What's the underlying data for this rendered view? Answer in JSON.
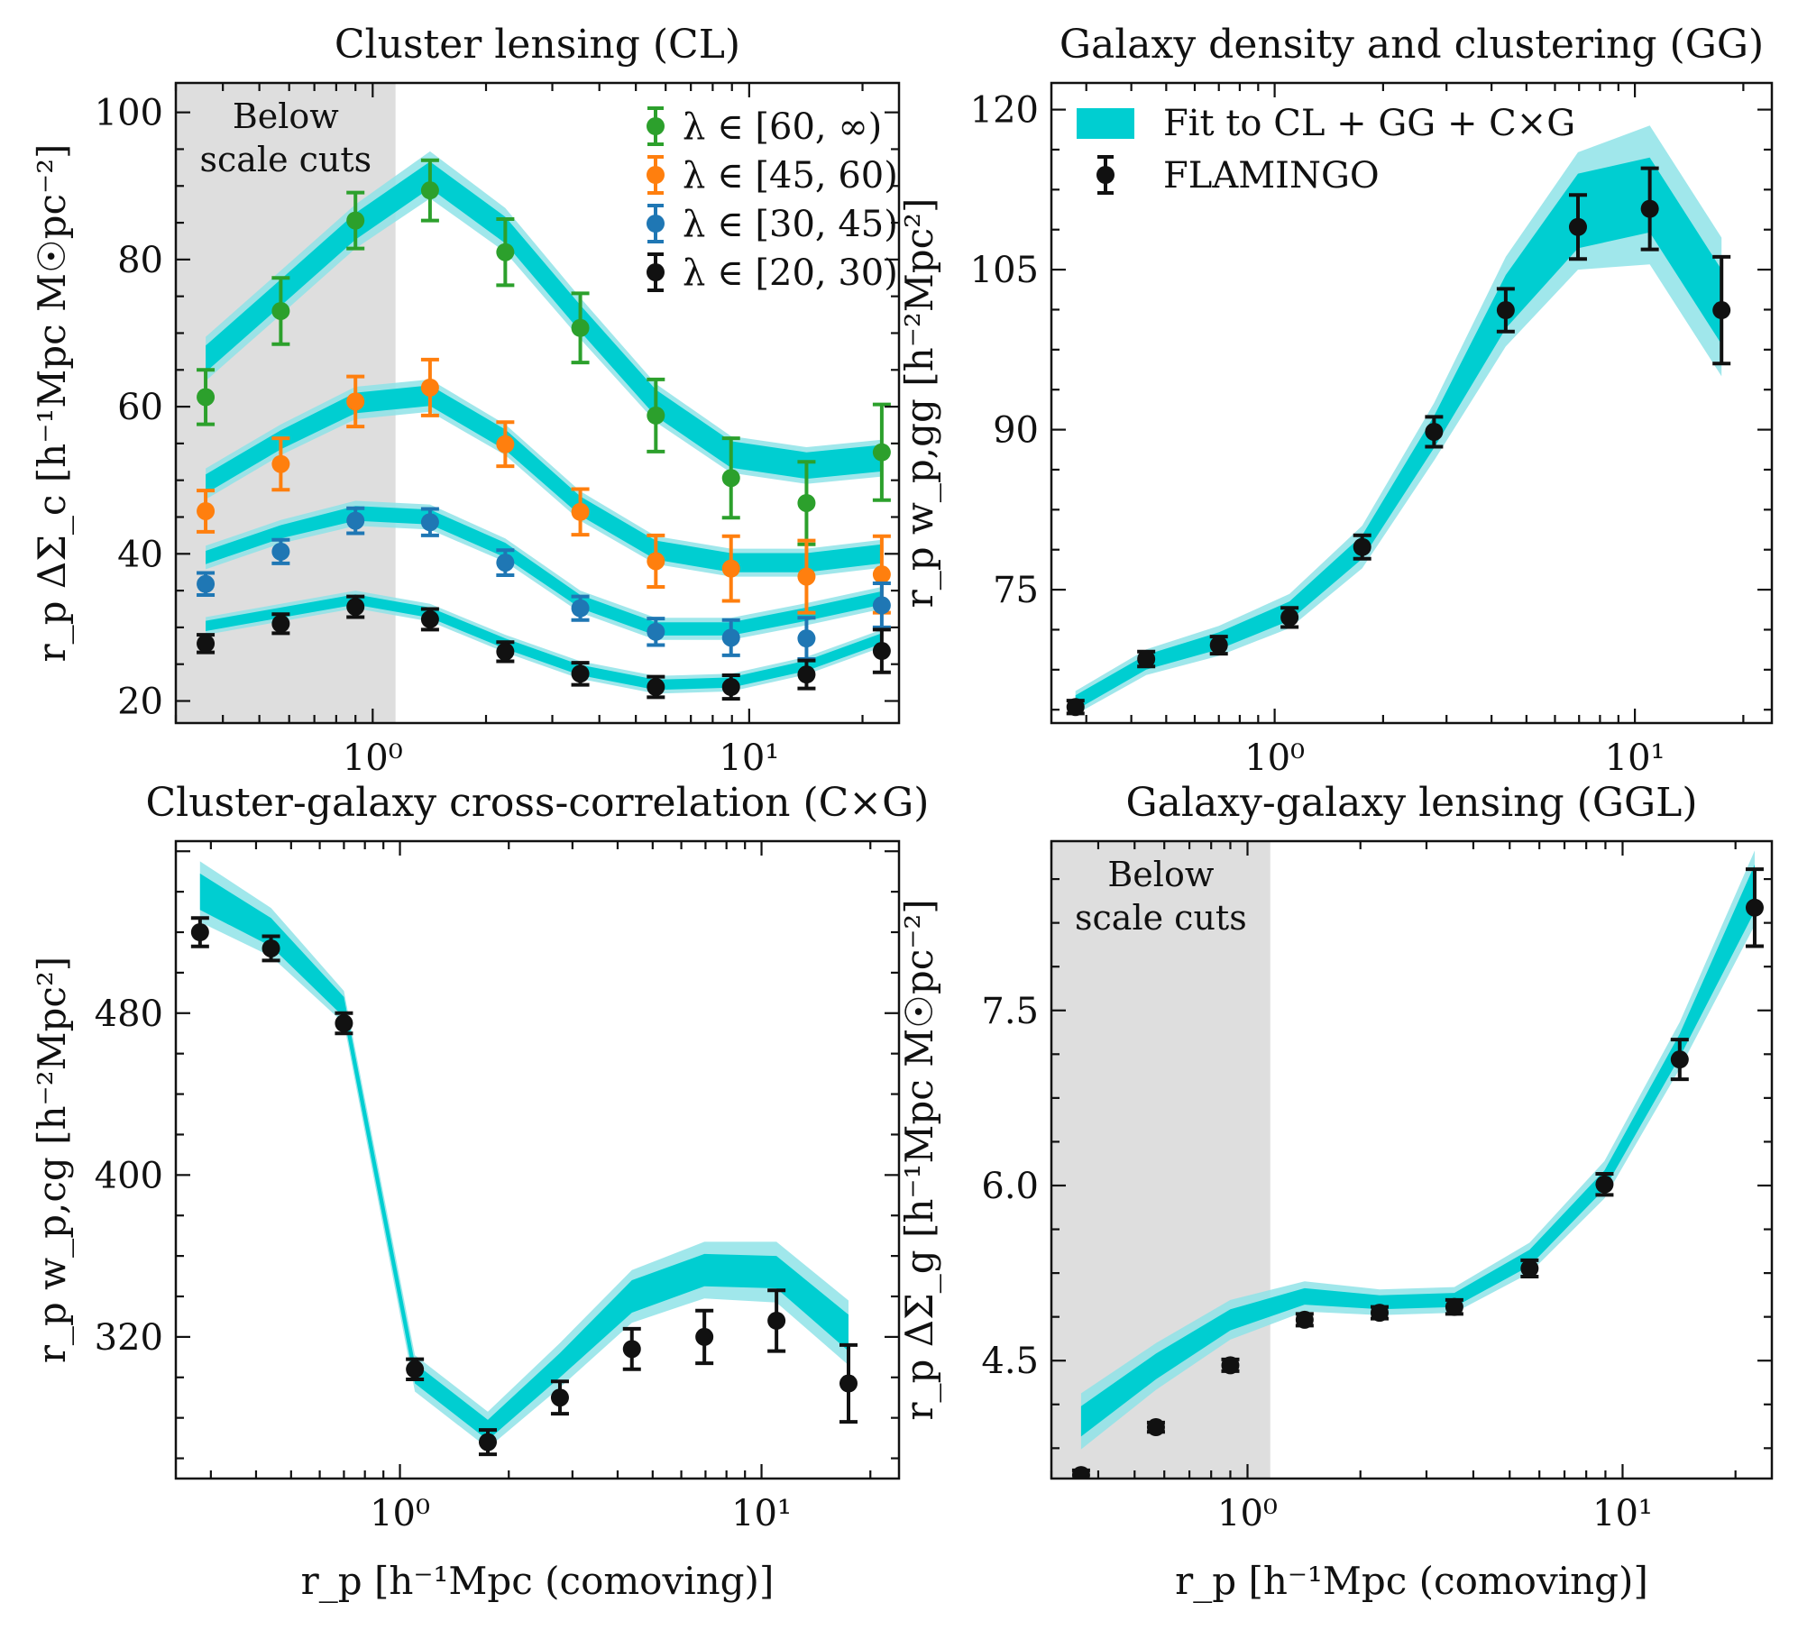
{
  "figure": {
    "xlabel_common": "r_p [h⁻¹Mpc (comoving)]"
  },
  "colors": {
    "band_inner": "#00CED1",
    "band_outer": "#8FE3E8",
    "shade": "#DEDEDE",
    "green": "#2CA02C",
    "orange": "#FF7F0E",
    "blue": "#1F77B4",
    "black": "#111111"
  },
  "chart_data": [
    {
      "id": "cl",
      "type": "line",
      "title": "Cluster lensing (CL)",
      "ylabel": "r_p ΔΣ_c [h⁻¹Mpc M☉pc⁻²]",
      "xlabel": "",
      "xscale": "log",
      "xlim": [
        0.3,
        25
      ],
      "ylim": [
        17,
        104
      ],
      "xticks": [
        {
          "v": 1,
          "label": "10⁰"
        },
        {
          "v": 10,
          "label": "10¹"
        }
      ],
      "yticks": [
        20,
        40,
        60,
        80,
        100
      ],
      "shade_region": {
        "x": [
          0.3,
          1.15
        ],
        "label": [
          "Below",
          "scale cuts"
        ]
      },
      "legend": {
        "position": "top-right",
        "entries": [
          {
            "label": "λ ∈ [60, ∞)",
            "color": "#2CA02C"
          },
          {
            "label": "λ ∈ [45, 60)",
            "color": "#FF7F0E"
          },
          {
            "label": "λ ∈ [30, 45)",
            "color": "#1F77B4"
          },
          {
            "label": "λ ∈ [20, 30)",
            "color": "#111111"
          }
        ]
      },
      "x": [
        0.36,
        0.57,
        0.9,
        1.42,
        2.25,
        3.56,
        5.65,
        8.95,
        14.2,
        22.5
      ],
      "series": [
        {
          "name": "λ ∈ [60, ∞)",
          "color": "#2CA02C",
          "points": [
            61.3,
            73.0,
            85.3,
            89.4,
            81.0,
            70.7,
            58.8,
            50.3,
            46.9,
            53.8
          ],
          "errors": [
            3.7,
            4.5,
            3.8,
            4.1,
            4.5,
            4.7,
            4.9,
            5.4,
            5.6,
            6.5
          ],
          "model": [
            66.5,
            75.5,
            84.5,
            91.5,
            84.0,
            72.0,
            60.5,
            53.5,
            52.0,
            53.0
          ],
          "inner": [
            1.8,
            1.8,
            1.8,
            1.8,
            1.8,
            1.8,
            1.8,
            1.8,
            1.8,
            1.8
          ],
          "outer": [
            3.0,
            3.0,
            3.0,
            3.2,
            3.0,
            2.8,
            2.6,
            2.5,
            2.5,
            2.5
          ]
        },
        {
          "name": "λ ∈ [45, 60)",
          "color": "#FF7F0E",
          "points": [
            45.8,
            52.2,
            60.7,
            62.6,
            54.9,
            45.7,
            39.0,
            38.0,
            36.9,
            37.2
          ],
          "errors": [
            2.8,
            3.5,
            3.4,
            3.8,
            3.0,
            3.1,
            3.5,
            4.4,
            4.9,
            5.2
          ],
          "model": [
            49.5,
            55.5,
            60.5,
            61.5,
            55.5,
            46.5,
            40.5,
            38.8,
            38.8,
            40.0
          ],
          "inner": [
            1.3,
            1.3,
            1.4,
            1.4,
            1.4,
            1.3,
            1.3,
            1.3,
            1.3,
            1.3
          ],
          "outer": [
            2.1,
            2.1,
            2.2,
            2.2,
            2.1,
            2.0,
            1.9,
            1.9,
            1.9,
            1.9
          ]
        },
        {
          "name": "λ ∈ [30, 45)",
          "color": "#1F77B4",
          "points": [
            35.9,
            40.3,
            44.5,
            44.3,
            38.8,
            32.6,
            29.4,
            28.6,
            28.5,
            33.0
          ],
          "errors": [
            1.5,
            1.6,
            1.7,
            1.8,
            1.7,
            1.6,
            1.8,
            2.4,
            2.8,
            3.0
          ],
          "model": [
            39.5,
            43.0,
            45.5,
            45.0,
            40.5,
            33.5,
            29.8,
            29.8,
            31.8,
            34.0
          ],
          "inner": [
            0.9,
            0.9,
            1.0,
            1.0,
            1.0,
            0.9,
            0.9,
            0.9,
            0.9,
            0.9
          ],
          "outer": [
            1.6,
            1.6,
            1.7,
            1.7,
            1.6,
            1.5,
            1.5,
            1.5,
            1.5,
            1.5
          ]
        },
        {
          "name": "λ ∈ [20, 30)",
          "color": "#111111",
          "points": [
            27.8,
            30.5,
            32.8,
            31.1,
            26.7,
            23.7,
            21.9,
            21.9,
            23.6,
            26.8
          ],
          "errors": [
            1.2,
            1.3,
            1.4,
            1.4,
            1.3,
            1.5,
            1.4,
            1.6,
            1.9,
            2.9
          ],
          "model": [
            30.2,
            32.0,
            33.8,
            32.0,
            27.8,
            24.2,
            22.2,
            22.5,
            24.8,
            28.5
          ],
          "inner": [
            0.7,
            0.7,
            0.7,
            0.7,
            0.7,
            0.7,
            0.7,
            0.7,
            0.7,
            0.7
          ],
          "outer": [
            1.2,
            1.2,
            1.2,
            1.2,
            1.2,
            1.2,
            1.2,
            1.2,
            1.2,
            1.2
          ]
        }
      ]
    },
    {
      "id": "gg",
      "type": "line",
      "title": "Galaxy density and clustering (GG)",
      "ylabel": "r_p w_p,gg [h⁻²Mpc²]",
      "xlabel": "",
      "xscale": "log",
      "xlim": [
        0.24,
        24
      ],
      "ylim": [
        62.5,
        122.5
      ],
      "xticks": [
        {
          "v": 1,
          "label": "10⁰"
        },
        {
          "v": 10,
          "label": "10¹"
        }
      ],
      "yticks": [
        75,
        90,
        105,
        120
      ],
      "legend": {
        "position": "top-left",
        "entries": [
          {
            "label": "Fit to CL + GG + C×G",
            "kind": "band"
          },
          {
            "label": "FLAMINGO",
            "kind": "errorbar"
          }
        ]
      },
      "x": [
        0.28,
        0.44,
        0.7,
        1.1,
        1.75,
        2.77,
        4.38,
        6.95,
        11.0,
        17.4
      ],
      "series": [
        {
          "name": "FLAMINGO",
          "color": "#111111",
          "points": [
            64.0,
            68.5,
            69.8,
            72.4,
            79.0,
            89.8,
            101.2,
            109.0,
            110.7,
            101.2
          ],
          "errors": [
            0.6,
            0.7,
            0.8,
            0.9,
            1.1,
            1.4,
            2.0,
            3.0,
            3.8,
            5.0
          ],
          "model": [
            64.4,
            68.2,
            70.2,
            73.0,
            79.0,
            89.8,
            102.0,
            110.5,
            112.0,
            101.5
          ],
          "inner": [
            0.7,
            0.7,
            0.8,
            0.9,
            1.1,
            1.5,
            2.5,
            3.5,
            3.5,
            3.5
          ],
          "outer": [
            1.1,
            1.2,
            1.4,
            1.6,
            2.0,
            2.7,
            4.2,
            5.5,
            6.5,
            6.5
          ]
        }
      ]
    },
    {
      "id": "cg",
      "type": "line",
      "title": "Cluster-galaxy cross-correlation (C×G)",
      "ylabel": "r_p w_p,cg [h⁻²Mpc²]",
      "xlabel": "r_p [h⁻¹Mpc (comoving)]",
      "xscale": "log",
      "xlim": [
        0.24,
        24
      ],
      "ylim": [
        250,
        565
      ],
      "xticks": [
        {
          "v": 1,
          "label": "10⁰"
        },
        {
          "v": 10,
          "label": "10¹"
        }
      ],
      "yticks": [
        320,
        400,
        480
      ],
      "x": [
        0.28,
        0.44,
        0.7,
        1.1,
        1.75,
        2.77,
        4.38,
        6.95,
        11.0,
        17.4
      ],
      "series": [
        {
          "name": "FLAMINGO",
          "color": "#111111",
          "points": [
            520,
            512,
            475,
            304,
            268,
            290,
            314,
            320,
            328,
            297
          ],
          "errors": [
            7,
            6,
            5,
            5,
            6,
            8,
            10,
            13,
            15,
            19
          ],
          "model": [
            540,
            520,
            483,
            302,
            274,
            306,
            340,
            353,
            352,
            322
          ],
          "inner": [
            9,
            7,
            5,
            5,
            5,
            6,
            8,
            8,
            8,
            9
          ],
          "outer": [
            15,
            12,
            8,
            9,
            9,
            11,
            13,
            14,
            15,
            16
          ]
        }
      ]
    },
    {
      "id": "ggl",
      "type": "line",
      "title": "Galaxy-galaxy lensing (GGL)",
      "ylabel": "r_p ΔΣ_g [h⁻¹Mpc M☉pc⁻²]",
      "xlabel": "r_p [h⁻¹Mpc (comoving)]",
      "xscale": "log",
      "xlim": [
        0.3,
        25
      ],
      "ylim": [
        3.49,
        8.95
      ],
      "xticks": [
        {
          "v": 1,
          "label": "10⁰"
        },
        {
          "v": 10,
          "label": "10¹"
        }
      ],
      "yticks": [
        {
          "v": 4.5,
          "label": "4.5"
        },
        {
          "v": 6.0,
          "label": "6.0"
        },
        {
          "v": 7.5,
          "label": "7.5"
        }
      ],
      "shade_region": {
        "x": [
          0.3,
          1.15
        ],
        "label": [
          "Below",
          "scale cuts"
        ]
      },
      "x": [
        0.36,
        0.57,
        0.9,
        1.42,
        2.25,
        3.56,
        5.65,
        8.95,
        14.2,
        22.5
      ],
      "series": [
        {
          "name": "FLAMINGO",
          "color": "#111111",
          "points": [
            3.52,
            3.93,
            4.46,
            4.85,
            4.91,
            4.96,
            5.29,
            6.01,
            7.08,
            8.38
          ],
          "errors": [
            0.04,
            0.04,
            0.05,
            0.05,
            0.05,
            0.06,
            0.07,
            0.09,
            0.17,
            0.33
          ],
          "model": [
            3.98,
            4.45,
            4.85,
            5.05,
            5.0,
            5.02,
            5.38,
            6.05,
            7.2,
            8.55
          ],
          "inner": [
            0.13,
            0.11,
            0.09,
            0.07,
            0.06,
            0.06,
            0.07,
            0.08,
            0.1,
            0.2
          ],
          "outer": [
            0.24,
            0.2,
            0.17,
            0.13,
            0.11,
            0.11,
            0.13,
            0.16,
            0.2,
            0.32
          ]
        }
      ]
    }
  ]
}
